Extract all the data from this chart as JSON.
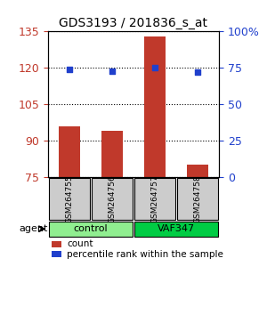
{
  "title": "GDS3193 / 201836_s_at",
  "samples": [
    "GSM264755",
    "GSM264756",
    "GSM264757",
    "GSM264758"
  ],
  "counts": [
    96,
    94,
    133,
    80
  ],
  "percentile_ranks": [
    74,
    73,
    75,
    72
  ],
  "ylim_left": [
    75,
    135
  ],
  "ylim_right": [
    0,
    100
  ],
  "yticks_left": [
    75,
    90,
    105,
    120,
    135
  ],
  "yticks_right": [
    0,
    25,
    50,
    75,
    100
  ],
  "bar_color": "#c0392b",
  "dot_color": "#2040cc",
  "groups": [
    {
      "label": "control",
      "samples": [
        0,
        1
      ],
      "color": "#90EE90"
    },
    {
      "label": "VAF347",
      "samples": [
        2,
        3
      ],
      "color": "#00CC44"
    }
  ],
  "agent_label": "agent",
  "legend_count_label": "count",
  "legend_pct_label": "percentile rank within the sample",
  "grid_color": "#000000",
  "background_color": "#ffffff",
  "plot_bg": "#ffffff",
  "sample_bg": "#cccccc"
}
